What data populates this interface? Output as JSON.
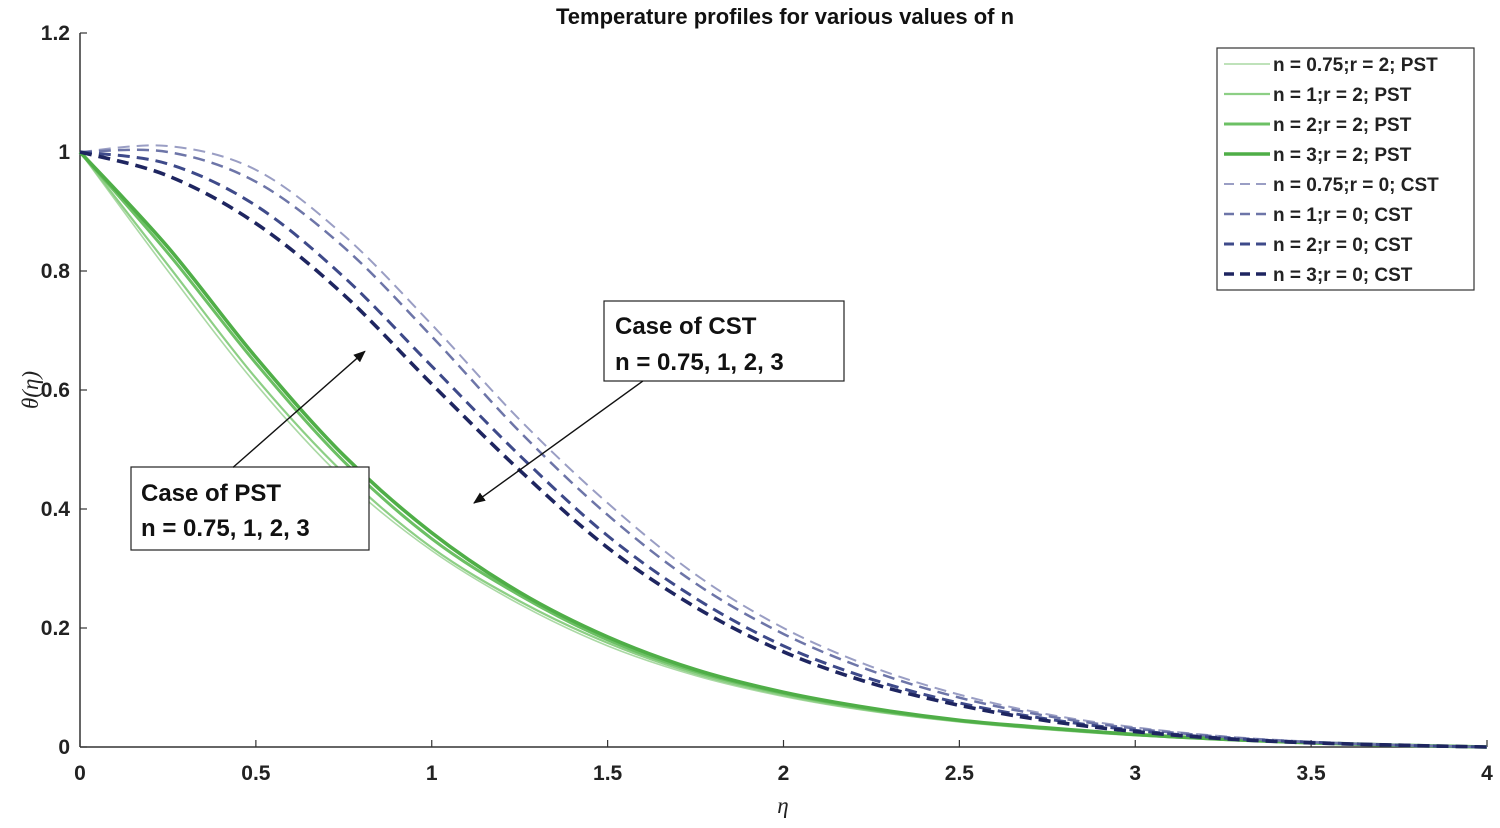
{
  "chart_data": {
    "type": "line",
    "title": "Temperature profiles for various values of n",
    "xlabel": "η",
    "ylabel": "θ(η)",
    "xlim": [
      0,
      4
    ],
    "ylim": [
      0,
      1.2
    ],
    "xticks": [
      0,
      0.5,
      1,
      1.5,
      2,
      2.5,
      3,
      3.5,
      4
    ],
    "xtick_labels": [
      "0",
      "0.5",
      "1",
      "1.5",
      "2",
      "2.5",
      "3",
      "3.5",
      "4"
    ],
    "yticks": [
      0,
      0.2,
      0.4,
      0.6,
      0.8,
      1,
      1.2
    ],
    "ytick_labels": [
      "0",
      "0.2",
      "0.4",
      "0.6",
      "0.8",
      "1",
      "1.2"
    ],
    "grid": false,
    "legend_position": "top-right",
    "x": [
      0,
      0.25,
      0.5,
      0.75,
      1,
      1.25,
      1.5,
      1.75,
      2,
      2.25,
      2.5,
      2.75,
      3,
      3.25,
      3.5,
      3.75,
      4
    ],
    "series": [
      {
        "name": "n = 0.75;r = 2; PST",
        "style": "solid",
        "color": "#aad9a4",
        "width": 1.6,
        "values": [
          1,
          0.8,
          0.61,
          0.45,
          0.33,
          0.24,
          0.17,
          0.12,
          0.085,
          0.06,
          0.042,
          0.029,
          0.019,
          0.012,
          0.007,
          0.003,
          0
        ]
      },
      {
        "name": "n = 1;r = 2; PST",
        "style": "solid",
        "color": "#8dcf85",
        "width": 2.2,
        "values": [
          1,
          0.81,
          0.62,
          0.46,
          0.335,
          0.245,
          0.175,
          0.123,
          0.087,
          0.061,
          0.043,
          0.03,
          0.02,
          0.012,
          0.007,
          0.003,
          0
        ]
      },
      {
        "name": "n = 2;r = 2; PST",
        "style": "solid",
        "color": "#6cc064",
        "width": 3,
        "values": [
          1,
          0.83,
          0.645,
          0.48,
          0.35,
          0.255,
          0.18,
          0.127,
          0.09,
          0.063,
          0.044,
          0.031,
          0.021,
          0.013,
          0.007,
          0.003,
          0
        ]
      },
      {
        "name": "n = 3;r = 2; PST",
        "style": "solid",
        "color": "#4fae47",
        "width": 3.6,
        "values": [
          1,
          0.84,
          0.655,
          0.49,
          0.36,
          0.26,
          0.185,
          0.13,
          0.092,
          0.065,
          0.045,
          0.032,
          0.021,
          0.013,
          0.007,
          0.003,
          0
        ]
      },
      {
        "name": "n = 0.75;r = 0; CST",
        "style": "dashed",
        "color": "#9a9ec4",
        "width": 2,
        "values": [
          1,
          1.01,
          0.97,
          0.86,
          0.71,
          0.55,
          0.41,
          0.29,
          0.2,
          0.135,
          0.088,
          0.055,
          0.033,
          0.018,
          0.009,
          0.004,
          0
        ]
      },
      {
        "name": "n = 1;r = 0; CST",
        "style": "dashed",
        "color": "#6d75a8",
        "width": 2.5,
        "values": [
          1,
          1,
          0.95,
          0.84,
          0.69,
          0.53,
          0.39,
          0.275,
          0.19,
          0.128,
          0.083,
          0.052,
          0.031,
          0.017,
          0.008,
          0.003,
          0
        ]
      },
      {
        "name": "n = 2;r = 0; CST",
        "style": "dashed",
        "color": "#3e4a8a",
        "width": 3,
        "values": [
          1,
          0.98,
          0.91,
          0.79,
          0.64,
          0.49,
          0.355,
          0.25,
          0.17,
          0.114,
          0.074,
          0.047,
          0.028,
          0.015,
          0.008,
          0.003,
          0
        ]
      },
      {
        "name": "n = 3;r = 0; CST",
        "style": "dashed",
        "color": "#1e2560",
        "width": 3.6,
        "values": [
          1,
          0.96,
          0.88,
          0.76,
          0.61,
          0.465,
          0.335,
          0.235,
          0.16,
          0.107,
          0.07,
          0.044,
          0.026,
          0.014,
          0.007,
          0.003,
          0
        ]
      }
    ],
    "annotations": [
      {
        "name": "cst",
        "lines": [
          "Case of CST",
          "n = 0.75, 1, 2, 3"
        ],
        "arrow_from": [
          1.6,
          0.615
        ],
        "arrow_to": [
          1.12,
          0.41
        ]
      },
      {
        "name": "pst",
        "lines": [
          "Case of PST",
          "n = 0.75, 1, 2, 3"
        ],
        "arrow_from": [
          0.435,
          0.47
        ],
        "arrow_to": [
          0.81,
          0.665
        ]
      }
    ]
  }
}
